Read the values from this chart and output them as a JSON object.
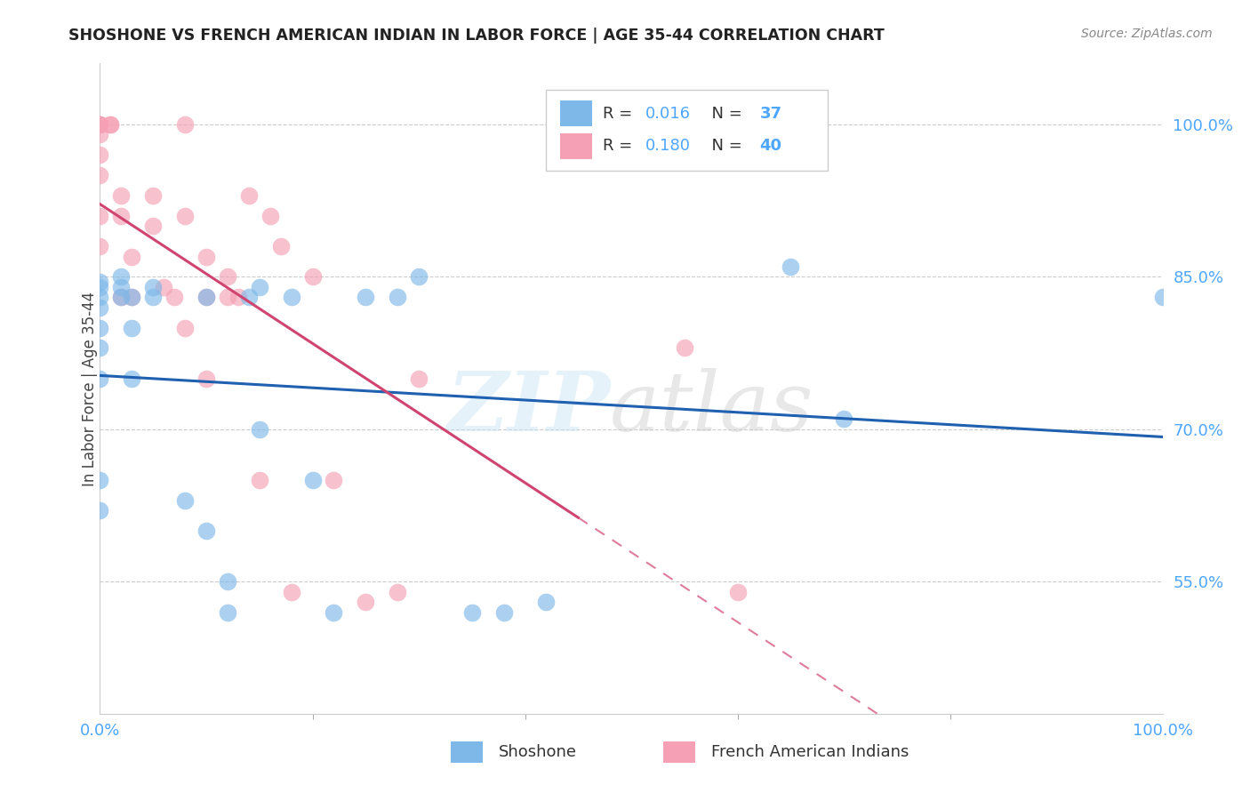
{
  "title": "SHOSHONE VS FRENCH AMERICAN INDIAN IN LABOR FORCE | AGE 35-44 CORRELATION CHART",
  "source": "Source: ZipAtlas.com",
  "ylabel": "In Labor Force | Age 35-44",
  "ytick_vals": [
    0.55,
    0.7,
    0.85,
    1.0
  ],
  "ytick_labels": [
    "55.0%",
    "70.0%",
    "85.0%",
    "100.0%"
  ],
  "xlim": [
    0.0,
    1.0
  ],
  "ylim": [
    0.42,
    1.06
  ],
  "shoshone_R": 0.016,
  "shoshone_N": 37,
  "french_R": 0.18,
  "french_N": 40,
  "shoshone_color": "#7eb8e8",
  "french_color": "#f5a0b5",
  "shoshone_line_color": "#2060b0",
  "french_line_color": "#d04570",
  "shoshone_x": [
    0.0,
    0.0,
    0.0,
    0.0,
    0.0,
    0.0,
    0.0,
    0.0,
    0.0,
    0.02,
    0.02,
    0.02,
    0.03,
    0.03,
    0.03,
    0.05,
    0.05,
    0.08,
    0.1,
    0.1,
    0.12,
    0.12,
    0.14,
    0.15,
    0.15,
    0.18,
    0.2,
    0.22,
    0.25,
    0.28,
    0.3,
    0.35,
    0.38,
    0.42,
    0.65,
    0.7,
    1.0
  ],
  "shoshone_y": [
    0.83,
    0.84,
    0.845,
    0.82,
    0.8,
    0.78,
    0.75,
    0.65,
    0.62,
    0.83,
    0.84,
    0.85,
    0.8,
    0.75,
    0.83,
    0.84,
    0.83,
    0.63,
    0.6,
    0.83,
    0.55,
    0.52,
    0.83,
    0.84,
    0.7,
    0.83,
    0.65,
    0.52,
    0.83,
    0.83,
    0.85,
    0.52,
    0.52,
    0.53,
    0.86,
    0.71,
    0.83
  ],
  "french_x": [
    0.0,
    0.0,
    0.0,
    0.0,
    0.0,
    0.0,
    0.0,
    0.0,
    0.01,
    0.01,
    0.02,
    0.02,
    0.02,
    0.03,
    0.03,
    0.05,
    0.05,
    0.06,
    0.07,
    0.08,
    0.08,
    0.08,
    0.1,
    0.1,
    0.1,
    0.12,
    0.12,
    0.13,
    0.14,
    0.15,
    0.16,
    0.17,
    0.18,
    0.2,
    0.22,
    0.25,
    0.28,
    0.3,
    0.55,
    0.6
  ],
  "french_y": [
    1.0,
    1.0,
    1.0,
    0.99,
    0.97,
    0.95,
    0.91,
    0.88,
    1.0,
    1.0,
    0.93,
    0.91,
    0.83,
    0.87,
    0.83,
    0.93,
    0.9,
    0.84,
    0.83,
    1.0,
    0.91,
    0.8,
    0.87,
    0.83,
    0.75,
    0.85,
    0.83,
    0.83,
    0.93,
    0.65,
    0.91,
    0.88,
    0.54,
    0.85,
    0.65,
    0.53,
    0.54,
    0.75,
    0.78,
    0.54
  ]
}
